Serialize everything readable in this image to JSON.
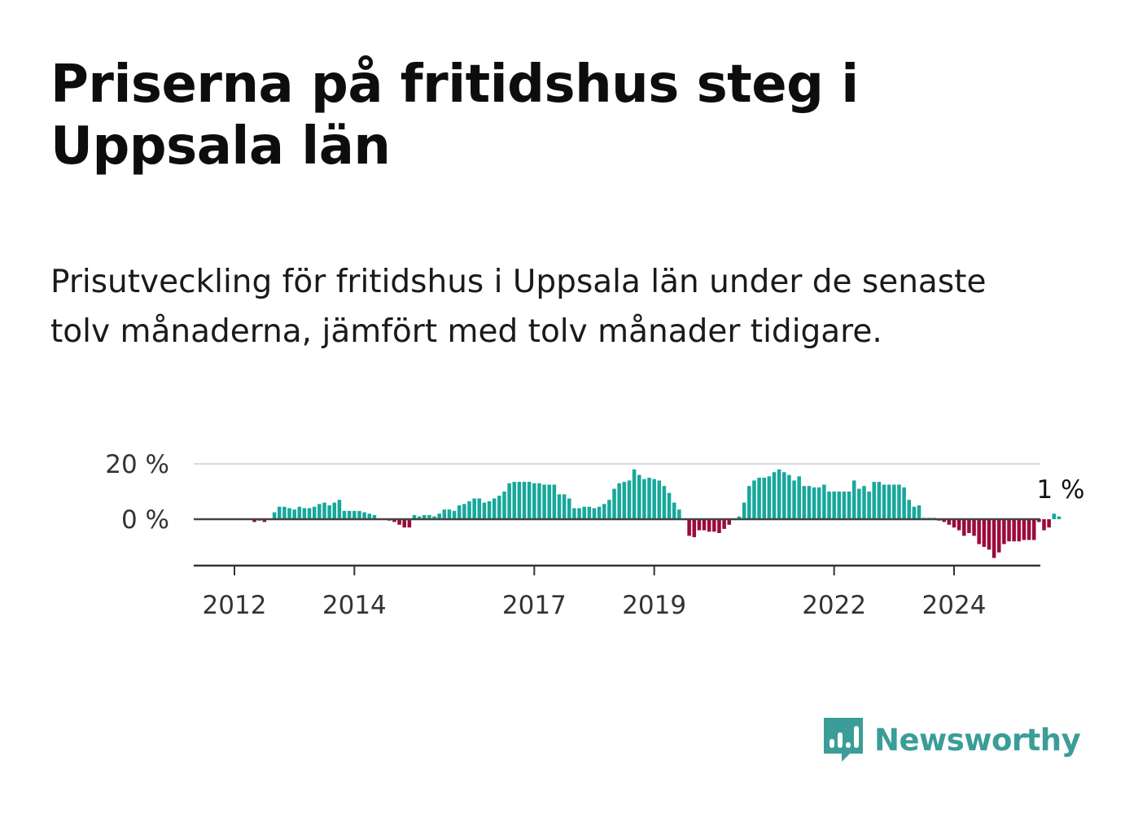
{
  "title": "Priserna på fritidshus steg i Uppsala län",
  "subtitle": "Prisutveckling för fritidshus i Uppsala län under de senaste tolv månaderna, jämfört med tolv månader tidigare.",
  "brand": "Newsworthy",
  "colors": {
    "positive": "#17a89b",
    "negative": "#9c0a3c",
    "brand": "#3b9d97",
    "grid": "#d9d9d9",
    "axis": "#333333"
  },
  "chart_data": {
    "type": "bar",
    "x_start": "2011-12",
    "frequency": "monthly",
    "ylim": [
      -17,
      20
    ],
    "yticks": [
      {
        "value": 20,
        "label": "20 %"
      },
      {
        "value": 0,
        "label": "0 %"
      }
    ],
    "xticks": [
      {
        "date": "2012-01",
        "label": "2012"
      },
      {
        "date": "2014-01",
        "label": "2014"
      },
      {
        "date": "2017-01",
        "label": "2017"
      },
      {
        "date": "2019-01",
        "label": "2019"
      },
      {
        "date": "2022-01",
        "label": "2022"
      },
      {
        "date": "2024-01",
        "label": "2024"
      }
    ],
    "last_label": "1 %",
    "values": [
      0,
      0,
      0,
      0,
      0,
      -1,
      -0.5,
      -1,
      0,
      2.5,
      4.5,
      4.5,
      4,
      3.5,
      4.5,
      4,
      4,
      4.5,
      5.5,
      6,
      5,
      6,
      7,
      3,
      3,
      3,
      3,
      2.5,
      2,
      1.5,
      0,
      0,
      -0.5,
      -1,
      -2,
      -3,
      -3,
      1.5,
      1,
      1.5,
      1.5,
      1,
      2,
      3.5,
      3.5,
      3,
      5,
      5.5,
      6.5,
      7.5,
      7.5,
      6,
      6.5,
      7.5,
      8.5,
      10,
      13,
      13.5,
      13.5,
      13.5,
      13.5,
      13,
      13,
      12.5,
      12.5,
      12.5,
      9,
      9,
      7.5,
      4,
      4,
      4.5,
      4.5,
      4,
      4.5,
      5.5,
      7,
      11,
      13,
      13.5,
      14,
      18,
      16,
      14.5,
      15,
      14.5,
      14,
      12,
      9.5,
      6,
      3.5,
      0,
      -6,
      -6.5,
      -4,
      -4,
      -4.5,
      -4.5,
      -5,
      -3.5,
      -2,
      0,
      1,
      6,
      12,
      14,
      15,
      15,
      15.5,
      17,
      18,
      17,
      16,
      14,
      15.5,
      12,
      12,
      11.5,
      11.5,
      12.5,
      10,
      10,
      10,
      10,
      10,
      14,
      11,
      12,
      10,
      13.5,
      13.5,
      12.5,
      12.5,
      12.5,
      12.5,
      11.5,
      7,
      4.5,
      5,
      0.5,
      0.5,
      0.5,
      -0.5,
      -1,
      -2,
      -3,
      -4,
      -6,
      -5,
      -6,
      -9,
      -10,
      -11,
      -14,
      -12,
      -9,
      -8,
      -8,
      -8,
      -7.5,
      -7.5,
      -7.5,
      -1,
      -4,
      -3,
      2,
      1
    ]
  }
}
